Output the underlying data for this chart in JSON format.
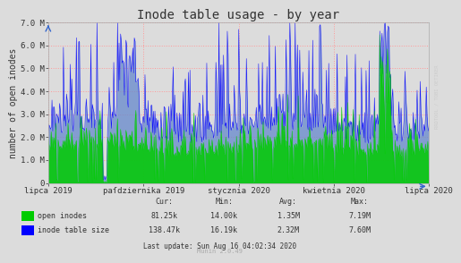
{
  "title": "Inode table usage - by year",
  "ylabel": "number of open inodes",
  "bg_color": "#DCDCDC",
  "grid_color": "#FF9999",
  "ylim": [
    0,
    7000000
  ],
  "yticks": [
    0,
    1000000,
    2000000,
    3000000,
    4000000,
    5000000,
    6000000,
    7000000
  ],
  "ytick_labels": [
    "0",
    "1.0 M",
    "2.0 M",
    "3.0 M",
    "4.0 M",
    "5.0 M",
    "6.0 M",
    "7.0 M"
  ],
  "xtick_labels": [
    "lipca 2019",
    "paſdziernika 2019",
    "stycznia 2020",
    "kwietnia 2020",
    "lipca 2020"
  ],
  "green_color": "#00CC00",
  "blue_color": "#0000FF",
  "blue_fill_color": "#6688CC",
  "right_label": "RRDTOOL / TOBI OETIKER",
  "legend": [
    {
      "label": "open inodes",
      "color": "#00CC00"
    },
    {
      "label": "inode table size",
      "color": "#0000FF"
    }
  ],
  "stats": [
    [
      "81.25k",
      "14.00k",
      "1.35M",
      "7.19M"
    ],
    [
      "138.47k",
      "16.19k",
      "2.32M",
      "7.60M"
    ]
  ],
  "last_update": "Last update: Sun Aug 16 04:02:34 2020",
  "munin_version": "Munin 2.0.49"
}
